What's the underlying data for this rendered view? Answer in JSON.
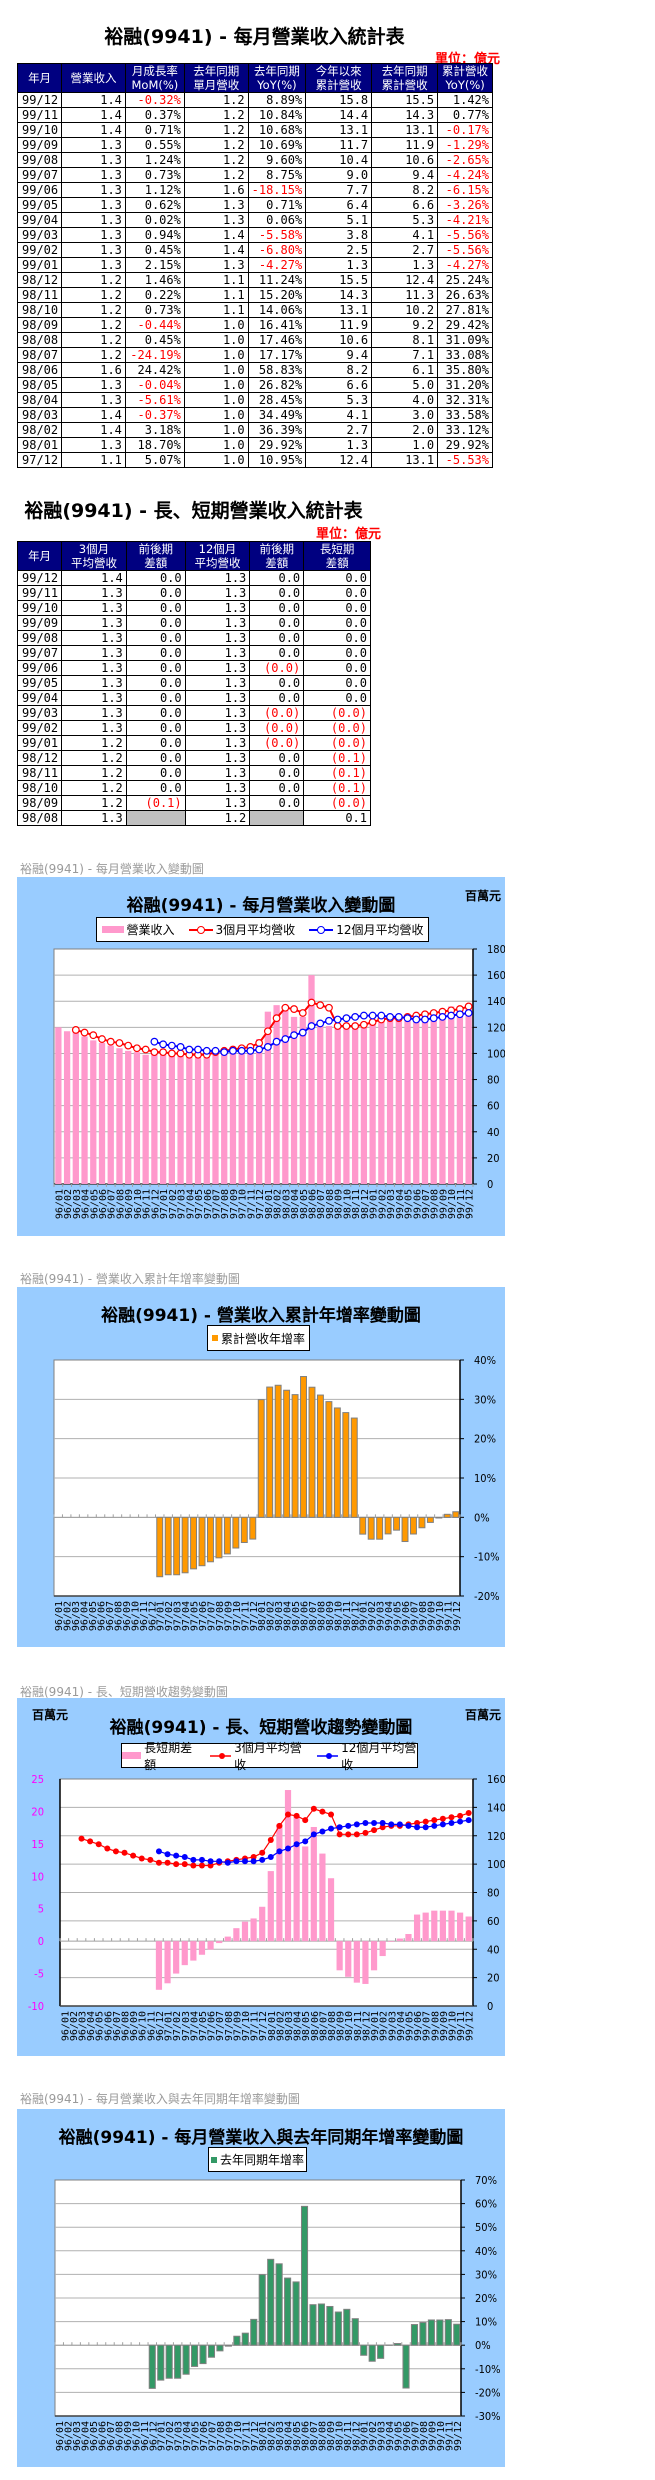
{
  "table1": {
    "title": "裕融(9941) - 每月營業收入統計表",
    "unit": "單位：億元",
    "headers": [
      "年月",
      "營業收入",
      "月成長率\nMoM(%)",
      "去年同期\n單月營收",
      "去年同期\nYoY(%)",
      "今年以來\n累計營收",
      "去年同期\n累計營收",
      "累計營收\nYoY(%)"
    ],
    "rows": [
      [
        "99/12",
        "1.4",
        "-0.32%",
        "1.2",
        "8.89%",
        "15.8",
        "15.5",
        "1.42%"
      ],
      [
        "99/11",
        "1.4",
        "0.37%",
        "1.2",
        "10.84%",
        "14.4",
        "14.3",
        "0.77%"
      ],
      [
        "99/10",
        "1.4",
        "0.71%",
        "1.2",
        "10.68%",
        "13.1",
        "13.1",
        "-0.17%"
      ],
      [
        "99/09",
        "1.3",
        "0.55%",
        "1.2",
        "10.69%",
        "11.7",
        "11.9",
        "-1.29%"
      ],
      [
        "99/08",
        "1.3",
        "1.24%",
        "1.2",
        "9.60%",
        "10.4",
        "10.6",
        "-2.65%"
      ],
      [
        "99/07",
        "1.3",
        "0.73%",
        "1.2",
        "8.75%",
        "9.0",
        "9.4",
        "-4.24%"
      ],
      [
        "99/06",
        "1.3",
        "1.12%",
        "1.6",
        "-18.15%",
        "7.7",
        "8.2",
        "-6.15%"
      ],
      [
        "99/05",
        "1.3",
        "0.62%",
        "1.3",
        "0.71%",
        "6.4",
        "6.6",
        "-3.26%"
      ],
      [
        "99/04",
        "1.3",
        "0.02%",
        "1.3",
        "0.06%",
        "5.1",
        "5.3",
        "-4.21%"
      ],
      [
        "99/03",
        "1.3",
        "0.94%",
        "1.4",
        "-5.58%",
        "3.8",
        "4.1",
        "-5.56%"
      ],
      [
        "99/02",
        "1.3",
        "0.45%",
        "1.4",
        "-6.80%",
        "2.5",
        "2.7",
        "-5.56%"
      ],
      [
        "99/01",
        "1.3",
        "2.15%",
        "1.3",
        "-4.27%",
        "1.3",
        "1.3",
        "-4.27%"
      ],
      [
        "98/12",
        "1.2",
        "1.46%",
        "1.1",
        "11.24%",
        "15.5",
        "12.4",
        "25.24%"
      ],
      [
        "98/11",
        "1.2",
        "0.22%",
        "1.1",
        "15.20%",
        "14.3",
        "11.3",
        "26.63%"
      ],
      [
        "98/10",
        "1.2",
        "0.73%",
        "1.1",
        "14.06%",
        "13.1",
        "10.2",
        "27.81%"
      ],
      [
        "98/09",
        "1.2",
        "-0.44%",
        "1.0",
        "16.41%",
        "11.9",
        "9.2",
        "29.42%"
      ],
      [
        "98/08",
        "1.2",
        "0.45%",
        "1.0",
        "17.46%",
        "10.6",
        "8.1",
        "31.09%"
      ],
      [
        "98/07",
        "1.2",
        "-24.19%",
        "1.0",
        "17.17%",
        "9.4",
        "7.1",
        "33.08%"
      ],
      [
        "98/06",
        "1.6",
        "24.42%",
        "1.0",
        "58.83%",
        "8.2",
        "6.1",
        "35.80%"
      ],
      [
        "98/05",
        "1.3",
        "-0.04%",
        "1.0",
        "26.82%",
        "6.6",
        "5.0",
        "31.20%"
      ],
      [
        "98/04",
        "1.3",
        "-5.61%",
        "1.0",
        "28.45%",
        "5.3",
        "4.0",
        "32.31%"
      ],
      [
        "98/03",
        "1.4",
        "-0.37%",
        "1.0",
        "34.49%",
        "4.1",
        "3.0",
        "33.58%"
      ],
      [
        "98/02",
        "1.4",
        "3.18%",
        "1.0",
        "36.39%",
        "2.7",
        "2.0",
        "33.12%"
      ],
      [
        "98/01",
        "1.3",
        "18.70%",
        "1.0",
        "29.92%",
        "1.3",
        "1.0",
        "29.92%"
      ],
      [
        "97/12",
        "1.1",
        "5.07%",
        "1.0",
        "10.95%",
        "12.4",
        "13.1",
        "-5.53%"
      ]
    ]
  },
  "table2": {
    "title": "裕融(9941) - 長、短期營業收入統計表",
    "unit": "單位：億元",
    "headers": [
      "年月",
      "3個月\n平均營收",
      "前後期\n差額",
      "12個月\n平均營收",
      "前後期\n差額",
      "長短期\n差額"
    ],
    "rows": [
      [
        "99/12",
        "1.4",
        "0.0",
        "1.3",
        "0.0",
        "0.0"
      ],
      [
        "99/11",
        "1.3",
        "0.0",
        "1.3",
        "0.0",
        "0.0"
      ],
      [
        "99/10",
        "1.3",
        "0.0",
        "1.3",
        "0.0",
        "0.0"
      ],
      [
        "99/09",
        "1.3",
        "0.0",
        "1.3",
        "0.0",
        "0.0"
      ],
      [
        "99/08",
        "1.3",
        "0.0",
        "1.3",
        "0.0",
        "0.0"
      ],
      [
        "99/07",
        "1.3",
        "0.0",
        "1.3",
        "0.0",
        "0.0"
      ],
      [
        "99/06",
        "1.3",
        "0.0",
        "1.3",
        "(0.0)",
        "0.0"
      ],
      [
        "99/05",
        "1.3",
        "0.0",
        "1.3",
        "0.0",
        "0.0"
      ],
      [
        "99/04",
        "1.3",
        "0.0",
        "1.3",
        "0.0",
        "0.0"
      ],
      [
        "99/03",
        "1.3",
        "0.0",
        "1.3",
        "(0.0)",
        "(0.0)"
      ],
      [
        "99/02",
        "1.3",
        "0.0",
        "1.3",
        "(0.0)",
        "(0.0)"
      ],
      [
        "99/01",
        "1.2",
        "0.0",
        "1.3",
        "(0.0)",
        "(0.0)"
      ],
      [
        "98/12",
        "1.2",
        "0.0",
        "1.3",
        "0.0",
        "(0.1)"
      ],
      [
        "98/11",
        "1.2",
        "0.0",
        "1.3",
        "0.0",
        "(0.1)"
      ],
      [
        "98/10",
        "1.2",
        "0.0",
        "1.3",
        "0.0",
        "(0.1)"
      ],
      [
        "98/09",
        "1.2",
        "(0.1)",
        "1.3",
        "0.0",
        "(0.0)"
      ],
      [
        "98/08",
        "1.3",
        "",
        "1.2",
        "",
        "0.1"
      ]
    ]
  },
  "captions": [
    "裕融(9941) - 每月營業收入變動圖",
    "裕融(9941) -  營業收入累計年增率變動圖",
    "裕融(9941) -  長、短期營收趨勢變動圖",
    "裕融(9941) -  每月營業收入與去年同期年增率變動圖"
  ],
  "colors": {
    "header_bg": "#000080",
    "negative": "#ff0000",
    "chart_bg": "#99ccff",
    "pink": "#ff99cc",
    "orange": "#ff9900",
    "green": "#339966",
    "red_line": "#ff0000",
    "blue_line": "#0000ff",
    "left_axis": "#ff00ff"
  },
  "chart_data": [
    {
      "type": "bar+line",
      "title": "裕融(9941) - 每月營業收入變動圖",
      "unit_right": "百萬元",
      "categories": [
        "96/01",
        "96/02",
        "96/03",
        "96/04",
        "96/05",
        "96/06",
        "96/07",
        "96/08",
        "96/09",
        "96/10",
        "96/11",
        "96/12",
        "97/01",
        "97/02",
        "97/03",
        "97/04",
        "97/05",
        "97/06",
        "97/07",
        "97/08",
        "97/09",
        "97/10",
        "97/11",
        "97/12",
        "98/01",
        "98/02",
        "98/03",
        "98/04",
        "98/05",
        "98/06",
        "98/07",
        "98/08",
        "98/09",
        "98/10",
        "98/11",
        "98/12",
        "99/01",
        "99/02",
        "99/03",
        "99/04",
        "99/05",
        "99/06",
        "99/07",
        "99/08",
        "99/09",
        "99/10",
        "99/11",
        "99/12"
      ],
      "y_axes": [
        {
          "side": "right",
          "min": 0,
          "max": 180,
          "step": 20,
          "suffix": ""
        }
      ],
      "grid": true,
      "legend": "top",
      "bars": [
        {
          "name": "營業收入",
          "axis": 0,
          "color": "#ff99cc",
          "values": [
            120,
            117,
            118,
            113,
            110,
            108,
            106,
            104,
            102,
            101,
            99,
            100,
            101,
            100,
            98,
            99,
            97,
            98,
            99,
            100,
            101,
            103,
            105,
            111,
            132,
            137,
            136,
            128,
            128,
            160,
            121,
            121,
            121,
            122,
            122,
            124,
            126,
            127,
            128,
            128,
            129,
            130,
            131,
            133,
            134,
            136,
            136,
            136
          ]
        }
      ],
      "lines": [
        {
          "name": "3個月平均營收",
          "axis": 0,
          "color": "#ff0000",
          "marker": "open",
          "values": [
            null,
            null,
            118,
            116,
            114,
            111,
            109,
            108,
            106,
            104,
            103,
            101,
            101,
            100,
            100,
            99,
            99,
            99,
            101,
            102,
            103,
            104,
            105,
            108,
            117,
            127,
            135,
            134,
            131,
            139,
            137,
            135,
            121,
            121,
            121,
            122,
            124,
            126,
            127,
            127,
            128,
            129,
            130,
            131,
            132,
            133,
            134,
            136
          ]
        },
        {
          "name": "12個月平均營收",
          "axis": 0,
          "color": "#0000ff",
          "marker": "open",
          "values": [
            null,
            null,
            null,
            null,
            null,
            null,
            null,
            null,
            null,
            null,
            null,
            109,
            107,
            106,
            105,
            103,
            103,
            102,
            102,
            101,
            102,
            102,
            102,
            103,
            105,
            109,
            111,
            114,
            116,
            121,
            123,
            125,
            126,
            127,
            128,
            129,
            129,
            129,
            128,
            128,
            127,
            126,
            126,
            127,
            128,
            129,
            130,
            131
          ]
        }
      ]
    },
    {
      "type": "bar",
      "title": "裕融(9941) -  營業收入累計年增率變動圖",
      "categories": [
        "96/01",
        "96/02",
        "96/03",
        "96/04",
        "96/05",
        "96/06",
        "96/07",
        "96/08",
        "96/09",
        "96/10",
        "96/11",
        "96/12",
        "97/01",
        "97/02",
        "97/03",
        "97/04",
        "97/05",
        "97/06",
        "97/07",
        "97/08",
        "97/09",
        "97/10",
        "97/11",
        "97/12",
        "98/01",
        "98/02",
        "98/03",
        "98/04",
        "98/05",
        "98/06",
        "98/07",
        "98/08",
        "98/09",
        "98/10",
        "98/11",
        "98/12",
        "99/01",
        "99/02",
        "99/03",
        "99/04",
        "99/05",
        "99/06",
        "99/07",
        "99/08",
        "99/09",
        "99/10",
        "99/11",
        "99/12"
      ],
      "y_axes": [
        {
          "side": "right",
          "min": -20,
          "max": 40,
          "step": 10,
          "suffix": "%"
        }
      ],
      "grid": true,
      "legend": "top",
      "bars": [
        {
          "name": "累計營收年增率",
          "axis": 0,
          "color": "#ff9900",
          "values": [
            null,
            null,
            null,
            null,
            null,
            null,
            null,
            null,
            null,
            null,
            null,
            null,
            -15.1,
            -14.6,
            -14.6,
            -14.1,
            -13.1,
            -12.3,
            -11.3,
            -10.3,
            -9.3,
            -7.8,
            -6.4,
            -5.53,
            29.92,
            33.12,
            33.58,
            32.31,
            31.2,
            35.8,
            33.08,
            31.09,
            29.42,
            27.81,
            26.63,
            25.24,
            -4.27,
            -5.56,
            -5.56,
            -4.21,
            -3.26,
            -6.15,
            -4.24,
            -2.65,
            -1.29,
            -0.17,
            0.77,
            1.42
          ]
        }
      ],
      "lines": []
    },
    {
      "type": "bar+line",
      "title": "裕融(9941) -  長、短期營收趨勢變動圖",
      "unit_left": "百萬元",
      "unit_right": "百萬元",
      "categories": [
        "96/01",
        "96/02",
        "96/03",
        "96/04",
        "96/05",
        "96/06",
        "96/07",
        "96/08",
        "96/09",
        "96/10",
        "96/11",
        "96/12",
        "97/01",
        "97/02",
        "97/03",
        "97/04",
        "97/05",
        "97/06",
        "97/07",
        "97/08",
        "97/09",
        "97/10",
        "97/11",
        "97/12",
        "98/01",
        "98/02",
        "98/03",
        "98/04",
        "98/05",
        "98/06",
        "98/07",
        "98/08",
        "98/09",
        "98/10",
        "98/11",
        "98/12",
        "99/01",
        "99/02",
        "99/03",
        "99/04",
        "99/05",
        "99/06",
        "99/07",
        "99/08",
        "99/09",
        "99/10",
        "99/11",
        "99/12"
      ],
      "y_axes": [
        {
          "side": "left",
          "min": -10,
          "max": 25,
          "step": 5,
          "suffix": "",
          "color": "#ff00ff"
        },
        {
          "side": "right",
          "min": 0,
          "max": 160,
          "step": 20,
          "suffix": ""
        }
      ],
      "grid": true,
      "legend": "top",
      "bars": [
        {
          "name": "長短期差額",
          "axis": 0,
          "color": "#ff99cc",
          "values": [
            null,
            null,
            null,
            null,
            null,
            null,
            null,
            null,
            null,
            null,
            null,
            -7.5,
            -6.5,
            -5.0,
            -3.7,
            -3.0,
            -2.1,
            -1.3,
            -0.3,
            0.7,
            2.0,
            3.0,
            3.5,
            5.3,
            10.8,
            18.0,
            23.3,
            19.3,
            14.6,
            17.6,
            13.5,
            9.7,
            -4.5,
            -5.5,
            -6.4,
            -6.6,
            -4.5,
            -2.3,
            -0.1,
            0.4,
            1.1,
            4.1,
            4.4,
            4.7,
            4.7,
            4.7,
            4.4,
            3.8
          ]
        }
      ],
      "lines": [
        {
          "name": "3個月平均營收",
          "axis": 1,
          "color": "#ff0000",
          "marker": "dot",
          "values": [
            null,
            null,
            118,
            116,
            114,
            111,
            109,
            108,
            106,
            104,
            103,
            101,
            101,
            100,
            100,
            99,
            99,
            99,
            101,
            102,
            103,
            104,
            105,
            108,
            117,
            127,
            135,
            134,
            131,
            139,
            137,
            135,
            121,
            121,
            121,
            122,
            124,
            126,
            127,
            127,
            128,
            129,
            130,
            131,
            132,
            133,
            134,
            136
          ]
        },
        {
          "name": "12個月平均營收",
          "axis": 1,
          "color": "#0000ff",
          "marker": "dot",
          "values": [
            null,
            null,
            null,
            null,
            null,
            null,
            null,
            null,
            null,
            null,
            null,
            109,
            107,
            106,
            105,
            103,
            103,
            102,
            102,
            101,
            102,
            102,
            102,
            103,
            105,
            109,
            111,
            114,
            116,
            121,
            123,
            125,
            126,
            127,
            128,
            129,
            129,
            129,
            128,
            128,
            127,
            126,
            126,
            127,
            128,
            129,
            130,
            131
          ]
        }
      ]
    },
    {
      "type": "bar",
      "title": "裕融(9941) -  每月營業收入與去年同期年增率變動圖",
      "categories": [
        "96/01",
        "96/02",
        "96/03",
        "96/04",
        "96/05",
        "96/06",
        "96/07",
        "96/08",
        "96/09",
        "96/10",
        "96/11",
        "96/12",
        "97/01",
        "97/02",
        "97/03",
        "97/04",
        "97/05",
        "97/06",
        "97/07",
        "97/08",
        "97/09",
        "97/10",
        "97/11",
        "97/12",
        "98/01",
        "98/02",
        "98/03",
        "98/04",
        "98/05",
        "98/06",
        "98/07",
        "98/08",
        "98/09",
        "98/10",
        "98/11",
        "98/12",
        "99/01",
        "99/02",
        "99/03",
        "99/04",
        "99/05",
        "99/06",
        "99/07",
        "99/08",
        "99/09",
        "99/10",
        "99/11",
        "99/12"
      ],
      "y_axes": [
        {
          "side": "right",
          "min": -30,
          "max": 70,
          "step": 10,
          "suffix": "%"
        }
      ],
      "grid": true,
      "legend": "top",
      "bars": [
        {
          "name": "去年同期年增率",
          "axis": 0,
          "color": "#339966",
          "values": [
            null,
            null,
            null,
            null,
            null,
            null,
            null,
            null,
            null,
            null,
            null,
            -18.3,
            -14.8,
            -14.0,
            -14.0,
            -12.3,
            -9.0,
            -7.8,
            -5.1,
            -2.4,
            -0.4,
            3.8,
            5.1,
            10.95,
            29.92,
            36.39,
            34.49,
            28.45,
            26.82,
            58.83,
            17.17,
            17.46,
            16.41,
            14.06,
            15.2,
            11.24,
            -4.27,
            -6.8,
            -5.58,
            0.06,
            0.71,
            -18.15,
            8.75,
            9.6,
            10.69,
            10.68,
            10.84,
            8.89
          ]
        }
      ],
      "lines": []
    }
  ]
}
